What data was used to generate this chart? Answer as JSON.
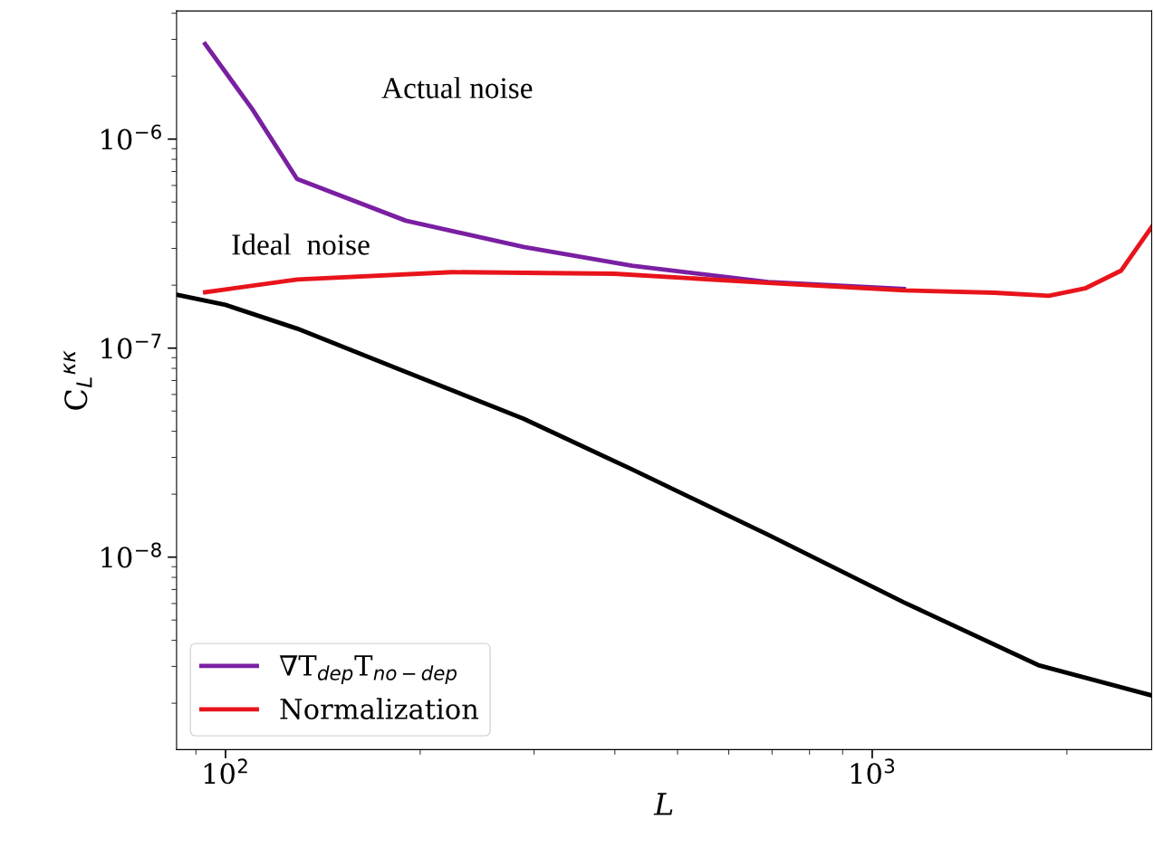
{
  "chart_data": {
    "type": "line",
    "xlabel": "L",
    "ylabel": "C$_{L}$$^{κκ}$",
    "log": "xy",
    "legend": "bottom left",
    "grid": false,
    "xlim": [
      84,
      2705
    ],
    "ylim": [
      1.2e-09,
      4.1e-06
    ],
    "xticks": [
      {
        "value": 100,
        "label": "10$^{2}$"
      },
      {
        "value": 1000,
        "label": "10$^{3}$"
      }
    ],
    "yticks": [
      {
        "value": 1e-08,
        "label": "10$^{−8}$"
      },
      {
        "value": 1e-07,
        "label": "10$^{−7}$"
      },
      {
        "value": 1e-06,
        "label": "10$^{−6}$"
      }
    ],
    "series": [
      {
        "name": "∇T$_{dep}$T$_{no−dep}$",
        "color": "#7a1fa2",
        "x": [
          93,
          110,
          129,
          190,
          289,
          425,
          690,
          1119
        ],
        "values": [
          2.85e-06,
          1.39e-06,
          6.45e-07,
          4.07e-07,
          3.05e-07,
          2.48e-07,
          2.07e-07,
          1.92e-07
        ]
      },
      {
        "name": "Normalization",
        "color": "#e8141b",
        "x": [
          93,
          129,
          224,
          399,
          690,
          1119,
          1545,
          1876,
          2134,
          2427,
          2705
        ],
        "values": [
          1.85e-07,
          2.13e-07,
          2.31e-07,
          2.27e-07,
          2.05e-07,
          1.89e-07,
          1.84e-07,
          1.78e-07,
          1.93e-07,
          2.35e-07,
          3.8e-07
        ]
      },
      {
        "color": "#000000",
        "x": [
          84,
          100,
          129,
          190,
          289,
          425,
          690,
          1119,
          1813,
          2705
        ],
        "values": [
          1.8e-07,
          1.61e-07,
          1.24e-07,
          7.7e-08,
          4.59e-08,
          2.63e-08,
          1.28e-08,
          6.08e-09,
          3.03e-09,
          2.18e-09
        ]
      }
    ],
    "annotations": [
      "Actual noise",
      "Ideal  noise"
    ]
  }
}
